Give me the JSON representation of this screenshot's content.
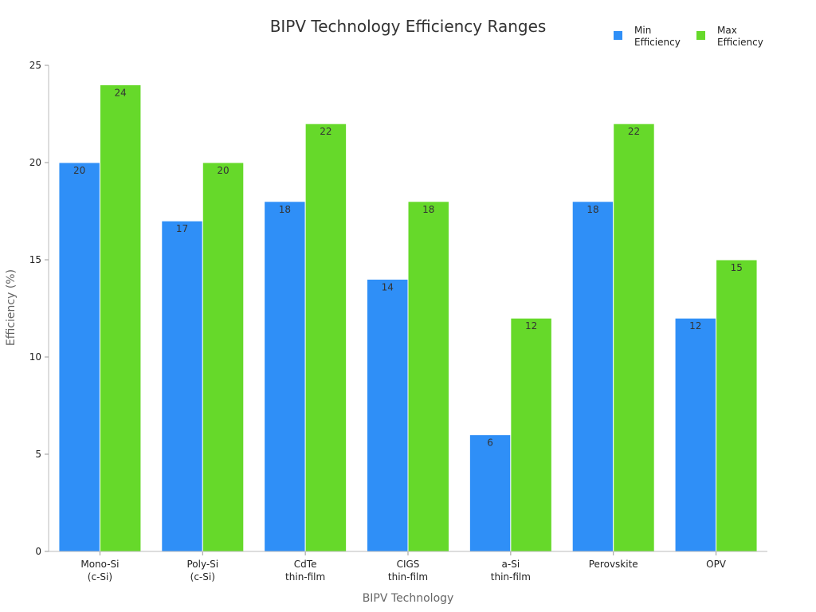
{
  "chart_data": {
    "type": "bar",
    "title": "BIPV Technology Efficiency Ranges",
    "xlabel": "BIPV Technology",
    "ylabel": "Efficiency (%)",
    "categories": [
      [
        "Mono-Si",
        "(c-Si)"
      ],
      [
        "Poly-Si",
        "(c-Si)"
      ],
      [
        "CdTe",
        "thin-film"
      ],
      [
        "CIGS",
        "thin-film"
      ],
      [
        "a-Si",
        "thin-film"
      ],
      [
        "Perovskite"
      ],
      [
        "OPV"
      ]
    ],
    "series": [
      {
        "name": [
          "Min",
          "Efficiency"
        ],
        "color": "#2f8ff7",
        "values": [
          20,
          17,
          18,
          14,
          6,
          18,
          12
        ]
      },
      {
        "name": [
          "Max",
          "Efficiency"
        ],
        "color": "#66d92a",
        "values": [
          24,
          20,
          22,
          18,
          12,
          22,
          15
        ]
      }
    ],
    "ylim": [
      0,
      25
    ],
    "yticks": [
      0,
      5,
      10,
      15,
      20,
      25
    ],
    "grid": false,
    "legend": "top-right"
  }
}
